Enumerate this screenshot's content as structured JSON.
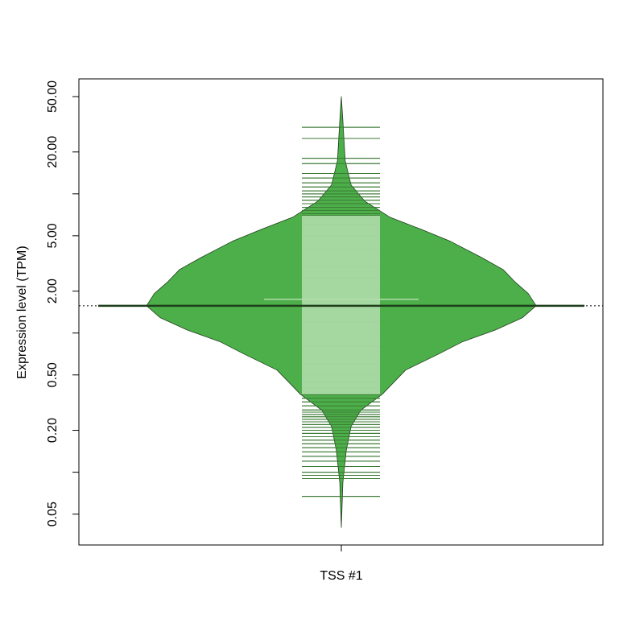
{
  "chart_data": {
    "type": "bean",
    "y_label": "Expression level (TPM)",
    "categories": [
      "TSS #1"
    ],
    "log_y": true,
    "ylim": [
      0.03,
      67
    ],
    "yticks": [
      {
        "value": 0.05,
        "label": "0.05"
      },
      {
        "value": 0.1,
        "label": null
      },
      {
        "value": 0.2,
        "label": "0.20"
      },
      {
        "value": 0.5,
        "label": "0.50"
      },
      {
        "value": 1,
        "label": null
      },
      {
        "value": 2,
        "label": "2.00"
      },
      {
        "value": 5,
        "label": "5.00"
      },
      {
        "value": 10,
        "label": null
      },
      {
        "value": 20,
        "label": "20.00"
      },
      {
        "value": 50,
        "label": "50.00"
      }
    ],
    "color": "#4daf4a",
    "border_color": "#1f3f1c",
    "box_color": "#b2dead",
    "line_color": "#3b7a34",
    "density": {
      "y": [
        50,
        33.6,
        17.3,
        11.6,
        8.87,
        6.79,
        5.56,
        4.56,
        3.49,
        2.86,
        2.34,
        1.92,
        1.57,
        1.29,
        1.05,
        0.863,
        0.707,
        0.542,
        0.363,
        0.279,
        0.213,
        0.143,
        0.084,
        0.04
      ],
      "width": [
        0,
        0.008,
        0.02,
        0.05,
        0.12,
        0.25,
        0.41,
        0.56,
        0.72,
        0.83,
        0.89,
        0.96,
        1,
        0.93,
        0.79,
        0.62,
        0.5,
        0.33,
        0.21,
        0.1,
        0.05,
        0.025,
        0.008,
        0
      ]
    },
    "box": [
      0.363,
      6.97
    ],
    "bean_lines": [
      30.1,
      25,
      18,
      16.5,
      14,
      13,
      12,
      11.2,
      10.5,
      10,
      9.5,
      9,
      8.5,
      8,
      7.6,
      7.2,
      7,
      6.8,
      6.5,
      6,
      5.5,
      5,
      4,
      3,
      2.5,
      2,
      1.5,
      1.2,
      1,
      0.8,
      0.6,
      0.5,
      0.45,
      0.4,
      0.36,
      0.34,
      0.32,
      0.3,
      0.28,
      0.27,
      0.26,
      0.25,
      0.24,
      0.23,
      0.22,
      0.21,
      0.2,
      0.19,
      0.18,
      0.17,
      0.16,
      0.15,
      0.14,
      0.13,
      0.12,
      0.11,
      0.1,
      0.095,
      0.09,
      0.067
    ],
    "bean_average": 1.57,
    "inner_line": 1.75,
    "overall_average": 1.57
  }
}
